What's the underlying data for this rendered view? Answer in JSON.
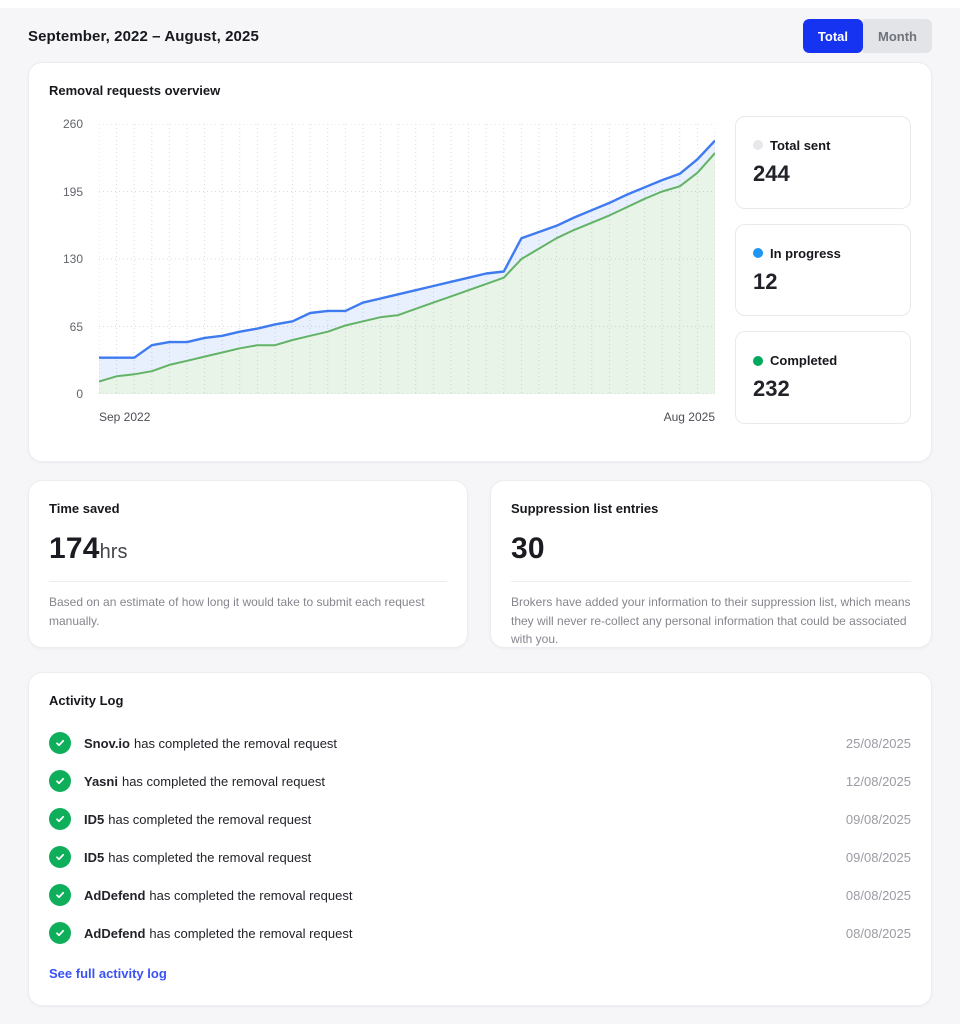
{
  "header": {
    "title": "September, 2022 – August, 2025",
    "toggle": {
      "total_label": "Total",
      "month_label": "Month"
    }
  },
  "overview": {
    "title": "Removal requests overview",
    "stats": [
      {
        "label": "Total sent",
        "value": "244",
        "dot_color": "#e8e8ec"
      },
      {
        "label": "In progress",
        "value": "12",
        "dot_color": "#1e96f6"
      },
      {
        "label": "Completed",
        "value": "232",
        "dot_color": "#00a95c"
      }
    ]
  },
  "chart_data": {
    "type": "area",
    "title": "Removal requests overview",
    "x": [
      "Sep 2022",
      "Oct 2022",
      "Nov 2022",
      "Dec 2022",
      "Jan 2023",
      "Feb 2023",
      "Mar 2023",
      "Apr 2023",
      "May 2023",
      "Jun 2023",
      "Jul 2023",
      "Aug 2023",
      "Sep 2023",
      "Oct 2023",
      "Nov 2023",
      "Dec 2023",
      "Jan 2024",
      "Feb 2024",
      "Mar 2024",
      "Apr 2024",
      "May 2024",
      "Jun 2024",
      "Jul 2024",
      "Aug 2024",
      "Sep 2024",
      "Oct 2024",
      "Nov 2024",
      "Dec 2024",
      "Jan 2025",
      "Feb 2025",
      "Mar 2025",
      "Apr 2025",
      "May 2025",
      "Jun 2025",
      "Jul 2025",
      "Aug 2025"
    ],
    "x_tick_labels": [
      "Sep 2022",
      "Aug 2025"
    ],
    "yticks": [
      0,
      65,
      130,
      195,
      260
    ],
    "ylim": [
      0,
      260
    ],
    "grid": true,
    "legend_position": "right-cards",
    "band_fill": "rgba(62,123,240,0.12)",
    "area_fill": "rgba(98,179,102,0.14)",
    "series": [
      {
        "name": "Total sent",
        "color": "#3e7bf0",
        "values": [
          35,
          35,
          35,
          47,
          50,
          50,
          54,
          56,
          60,
          63,
          67,
          70,
          78,
          80,
          80,
          88,
          92,
          96,
          100,
          104,
          108,
          112,
          116,
          118,
          150,
          156,
          162,
          170,
          177,
          184,
          192,
          199,
          206,
          212,
          226,
          244
        ]
      },
      {
        "name": "Completed",
        "color": "#62b366",
        "values": [
          12,
          17,
          19,
          22,
          28,
          32,
          36,
          40,
          44,
          47,
          47,
          52,
          56,
          60,
          66,
          70,
          74,
          76,
          82,
          88,
          94,
          100,
          106,
          112,
          130,
          140,
          150,
          158,
          165,
          172,
          180,
          188,
          195,
          200,
          213,
          232
        ]
      }
    ]
  },
  "time_saved": {
    "title": "Time saved",
    "value": "174",
    "unit": "hrs",
    "caption": "Based on an estimate of how long it would take to submit each request manually."
  },
  "suppression": {
    "title": "Suppression list entries",
    "value": "30",
    "caption": "Brokers have added your information to their suppression list, which means they will never re-collect any personal information that could be associated with you."
  },
  "activity_log": {
    "title": "Activity Log",
    "items": [
      {
        "broker": "Snov.io",
        "message": "has completed the removal request",
        "date": "25/08/2025"
      },
      {
        "broker": "Yasni",
        "message": "has completed the removal request",
        "date": "12/08/2025"
      },
      {
        "broker": "ID5",
        "message": "has completed the removal request",
        "date": "09/08/2025"
      },
      {
        "broker": "ID5",
        "message": "has completed the removal request",
        "date": "09/08/2025"
      },
      {
        "broker": "AdDefend",
        "message": "has completed the removal request",
        "date": "08/08/2025"
      },
      {
        "broker": "AdDefend",
        "message": "has completed the removal request",
        "date": "08/08/2025"
      }
    ],
    "link_label": "See full activity log"
  },
  "colors": {
    "brand_blue": "#1733f2",
    "link_blue": "#3a53f4",
    "check_green": "#0fae5b"
  }
}
